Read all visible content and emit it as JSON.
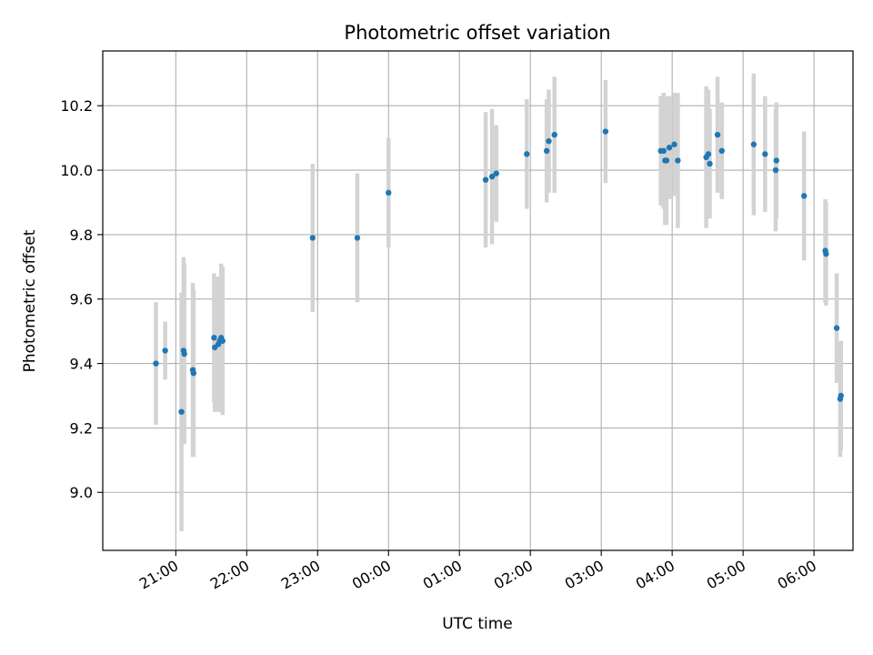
{
  "chart_data": {
    "type": "scatter",
    "title": "Photometric offset variation",
    "xlabel": "UTC time",
    "ylabel": "Photometric offset",
    "x_unit": "hours, relative to 00:00 UTC",
    "xlim": [
      -4.03,
      6.55
    ],
    "ylim": [
      8.82,
      10.37
    ],
    "x_ticks": [
      {
        "value": -3.0,
        "label": "21:00"
      },
      {
        "value": -2.0,
        "label": "22:00"
      },
      {
        "value": -1.0,
        "label": "23:00"
      },
      {
        "value": 0.0,
        "label": "00:00"
      },
      {
        "value": 1.0,
        "label": "01:00"
      },
      {
        "value": 2.0,
        "label": "02:00"
      },
      {
        "value": 3.0,
        "label": "03:00"
      },
      {
        "value": 4.0,
        "label": "04:00"
      },
      {
        "value": 5.0,
        "label": "05:00"
      },
      {
        "value": 6.0,
        "label": "06:00"
      }
    ],
    "y_ticks": [
      {
        "value": 9.0,
        "label": "9.0"
      },
      {
        "value": 9.2,
        "label": "9.2"
      },
      {
        "value": 9.4,
        "label": "9.4"
      },
      {
        "value": 9.6,
        "label": "9.6"
      },
      {
        "value": 9.8,
        "label": "9.8"
      },
      {
        "value": 10.0,
        "label": "10.0"
      },
      {
        "value": 10.2,
        "label": "10.2"
      }
    ],
    "grid": true,
    "colors": {
      "points": "#1f77b4",
      "errorbars": "#d3d3d3",
      "grid": "#b0b0b0"
    },
    "points": [
      {
        "x": -3.28,
        "y": 9.4,
        "err": 0.19
      },
      {
        "x": -3.15,
        "y": 9.44,
        "err": 0.09
      },
      {
        "x": -2.92,
        "y": 9.25,
        "err": 0.37
      },
      {
        "x": -2.89,
        "y": 9.44,
        "err": 0.29
      },
      {
        "x": -2.88,
        "y": 9.43,
        "err": 0.28
      },
      {
        "x": -2.76,
        "y": 9.38,
        "err": 0.27
      },
      {
        "x": -2.75,
        "y": 9.37,
        "err": 0.26
      },
      {
        "x": -2.46,
        "y": 9.48,
        "err": 0.2
      },
      {
        "x": -2.45,
        "y": 9.45,
        "err": 0.2
      },
      {
        "x": -2.4,
        "y": 9.46,
        "err": 0.21
      },
      {
        "x": -2.38,
        "y": 9.47,
        "err": 0.19
      },
      {
        "x": -2.36,
        "y": 9.48,
        "err": 0.23
      },
      {
        "x": -2.34,
        "y": 9.47,
        "err": 0.23
      },
      {
        "x": -1.07,
        "y": 9.79,
        "err": 0.23
      },
      {
        "x": -0.44,
        "y": 9.79,
        "err": 0.2
      },
      {
        "x": 0.0,
        "y": 9.93,
        "err": 0.17
      },
      {
        "x": 1.37,
        "y": 9.97,
        "err": 0.21
      },
      {
        "x": 1.46,
        "y": 9.98,
        "err": 0.21
      },
      {
        "x": 1.52,
        "y": 9.99,
        "err": 0.15
      },
      {
        "x": 1.95,
        "y": 10.05,
        "err": 0.17
      },
      {
        "x": 2.23,
        "y": 10.06,
        "err": 0.16
      },
      {
        "x": 2.26,
        "y": 10.09,
        "err": 0.16
      },
      {
        "x": 2.34,
        "y": 10.11,
        "err": 0.18
      },
      {
        "x": 3.06,
        "y": 10.12,
        "err": 0.16
      },
      {
        "x": 3.84,
        "y": 10.06,
        "err": 0.17
      },
      {
        "x": 3.88,
        "y": 10.06,
        "err": 0.18
      },
      {
        "x": 3.9,
        "y": 10.03,
        "err": 0.2
      },
      {
        "x": 3.92,
        "y": 10.03,
        "err": 0.2
      },
      {
        "x": 3.96,
        "y": 10.07,
        "err": 0.16
      },
      {
        "x": 4.03,
        "y": 10.08,
        "err": 0.16
      },
      {
        "x": 4.08,
        "y": 10.03,
        "err": 0.21
      },
      {
        "x": 4.48,
        "y": 10.04,
        "err": 0.22
      },
      {
        "x": 4.51,
        "y": 10.05,
        "err": 0.2
      },
      {
        "x": 4.53,
        "y": 10.02,
        "err": 0.17
      },
      {
        "x": 4.64,
        "y": 10.11,
        "err": 0.18
      },
      {
        "x": 4.7,
        "y": 10.06,
        "err": 0.15
      },
      {
        "x": 5.15,
        "y": 10.08,
        "err": 0.22
      },
      {
        "x": 5.31,
        "y": 10.05,
        "err": 0.18
      },
      {
        "x": 5.46,
        "y": 10.0,
        "err": 0.19
      },
      {
        "x": 5.47,
        "y": 10.03,
        "err": 0.18
      },
      {
        "x": 5.86,
        "y": 9.92,
        "err": 0.2
      },
      {
        "x": 6.16,
        "y": 9.75,
        "err": 0.16
      },
      {
        "x": 6.17,
        "y": 9.74,
        "err": 0.16
      },
      {
        "x": 6.32,
        "y": 9.51,
        "err": 0.17
      },
      {
        "x": 6.37,
        "y": 9.29,
        "err": 0.18
      },
      {
        "x": 6.38,
        "y": 9.3,
        "err": 0.17
      }
    ]
  }
}
